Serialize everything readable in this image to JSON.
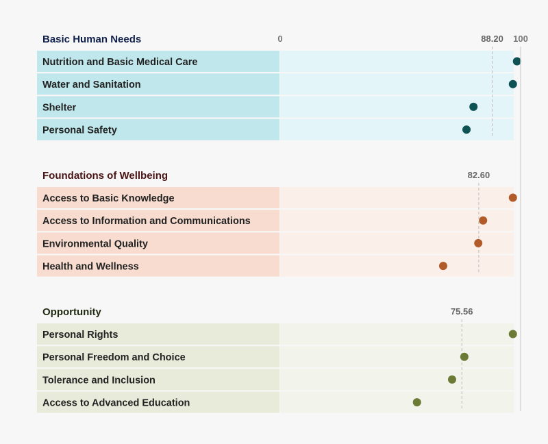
{
  "chart_data": {
    "type": "dot",
    "axis": {
      "min": 0,
      "max": 100,
      "tick_labels": [
        "0",
        "100"
      ]
    },
    "sections": [
      {
        "title": "Basic Human Needs",
        "average": 88.2,
        "average_label": "88.20",
        "colors": {
          "label_bg": "#bfe7ec",
          "track_bg": "#e3f5f8",
          "dot": "#0e5253",
          "title": "#0e1f4a"
        },
        "rows": [
          {
            "label": "Nutrition and Basic Medical Care",
            "value": 98.5
          },
          {
            "label": "Water and Sanitation",
            "value": 96.8
          },
          {
            "label": "Shelter",
            "value": 80.4
          },
          {
            "label": "Personal Safety",
            "value": 77.5
          }
        ]
      },
      {
        "title": "Foundations of Wellbeing",
        "average": 82.6,
        "average_label": "82.60",
        "colors": {
          "label_bg": "#f7dccf",
          "track_bg": "#fbefea",
          "dot": "#b15a2a",
          "title": "#4a1414"
        },
        "rows": [
          {
            "label": "Access to Basic Knowledge",
            "value": 96.8
          },
          {
            "label": "Access to Information and Communications",
            "value": 84.4
          },
          {
            "label": "Environmental Quality",
            "value": 82.4
          },
          {
            "label": "Health and Wellness",
            "value": 67.8
          }
        ]
      },
      {
        "title": "Opportunity",
        "average": 75.56,
        "average_label": "75.56",
        "colors": {
          "label_bg": "#e8ebda",
          "track_bg": "#f2f4eb",
          "dot": "#6b7a35",
          "title": "#1f2a10"
        },
        "rows": [
          {
            "label": "Personal Rights",
            "value": 96.8
          },
          {
            "label": "Personal Freedom and Choice",
            "value": 76.6
          },
          {
            "label": "Tolerance and Inclusion",
            "value": 71.5
          },
          {
            "label": "Access to Advanced Education",
            "value": 56.9
          }
        ]
      }
    ]
  }
}
